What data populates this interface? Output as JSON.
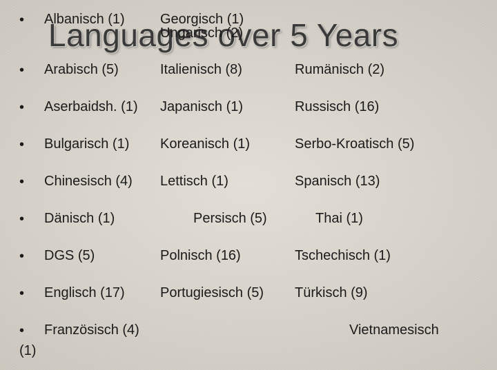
{
  "title": "Languages over 5 Years",
  "title_color": "#3a3a3a",
  "title_fontsize": 46,
  "body_fontsize": 20,
  "background_color": "#dcd7cd",
  "text_color": "#1a1a1a",
  "bullet_glyph": "•",
  "rows": [
    {
      "c1": "Albanisch (1)",
      "c2": "Georgisch (1)  Ungarisch (2)",
      "c3": ""
    },
    {
      "c1": "Arabisch (5)",
      "c2": "Italienisch (8)",
      "c3": "Rumänisch (2)"
    },
    {
      "c1": "Aserbaidsh. (1)",
      "c2": "Japanisch (1)",
      "c3": "Russisch (16)"
    },
    {
      "c1": "Bulgarisch (1)",
      "c2": "Koreanisch (1)",
      "c3": "Serbo-Kroatisch (5)"
    },
    {
      "c1": "Chinesisch (4)",
      "c2": "Lettisch (1)",
      "c3": "Spanisch (13)"
    },
    {
      "c1": "Dänisch (1)",
      "c2": "Persisch (5)",
      "c3": "Thai (1)",
      "indent": true
    },
    {
      "c1": "DGS (5)",
      "c2": "Polnisch (16)",
      "c3": "Tschechisch (1)"
    },
    {
      "c1": "Englisch (17)",
      "c2": "Portugiesisch (5)",
      "c3": "Türkisch (9)"
    }
  ],
  "last_row": {
    "c1": "Französisch (4)",
    "c3": "Vietnamesisch",
    "wrap": "(1)"
  }
}
